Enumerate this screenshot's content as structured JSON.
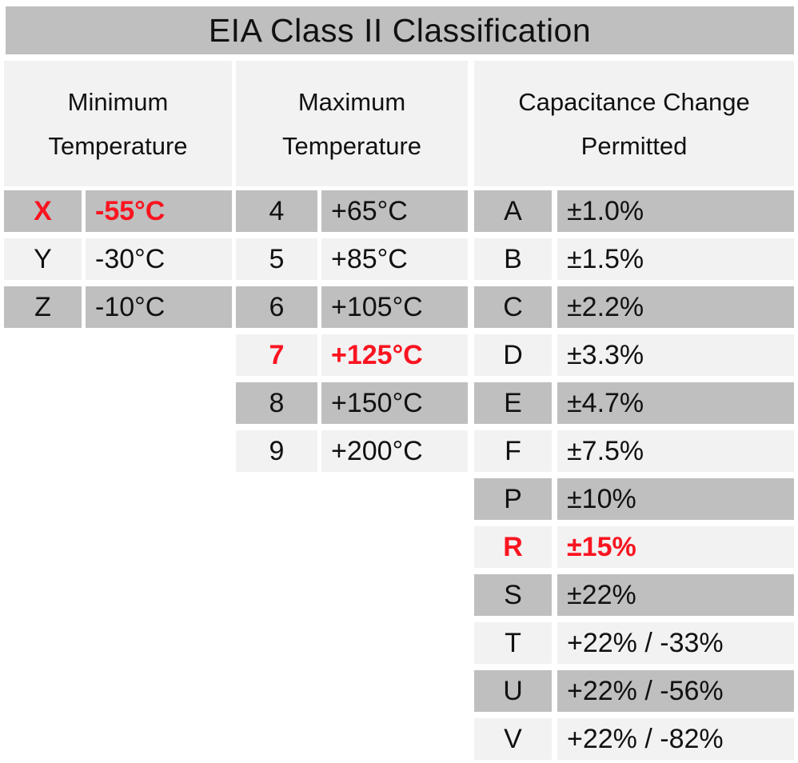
{
  "title": "EIA Class II Classification",
  "colors": {
    "title_bar": "#bfbfbf",
    "gray_row": "#bfbfbf",
    "light_row": "#f2f2f2",
    "highlight_red": "#fa1420",
    "text": "#111111",
    "background": "#ffffff"
  },
  "groups": [
    {
      "header_line1": "Minimum",
      "header_line2": "Temperature",
      "rows": [
        {
          "code": "X",
          "value": "-55°C",
          "highlight": true
        },
        {
          "code": "Y",
          "value": "-30°C",
          "highlight": false
        },
        {
          "code": "Z",
          "value": "-10°C",
          "highlight": false
        }
      ]
    },
    {
      "header_line1": "Maximum",
      "header_line2": "Temperature",
      "rows": [
        {
          "code": "4",
          "value": "+65°C",
          "highlight": false
        },
        {
          "code": "5",
          "value": "+85°C",
          "highlight": false
        },
        {
          "code": "6",
          "value": "+105°C",
          "highlight": false
        },
        {
          "code": "7",
          "value": "+125°C",
          "highlight": true
        },
        {
          "code": "8",
          "value": "+150°C",
          "highlight": false
        },
        {
          "code": "9",
          "value": "+200°C",
          "highlight": false
        }
      ]
    },
    {
      "header_line1": "Capacitance Change",
      "header_line2": "Permitted",
      "rows": [
        {
          "code": "A",
          "value": "±1.0%",
          "highlight": false
        },
        {
          "code": "B",
          "value": "±1.5%",
          "highlight": false
        },
        {
          "code": "C",
          "value": "±2.2%",
          "highlight": false
        },
        {
          "code": "D",
          "value": "±3.3%",
          "highlight": false
        },
        {
          "code": "E",
          "value": "±4.7%",
          "highlight": false
        },
        {
          "code": "F",
          "value": "±7.5%",
          "highlight": false
        },
        {
          "code": "P",
          "value": "±10%",
          "highlight": false
        },
        {
          "code": "R",
          "value": "±15%",
          "highlight": true
        },
        {
          "code": "S",
          "value": "±22%",
          "highlight": false
        },
        {
          "code": "T",
          "value": "+22% / -33%",
          "highlight": false
        },
        {
          "code": "U",
          "value": "+22% / -56%",
          "highlight": false
        },
        {
          "code": "V",
          "value": "+22% / -82%",
          "highlight": false
        }
      ]
    }
  ]
}
